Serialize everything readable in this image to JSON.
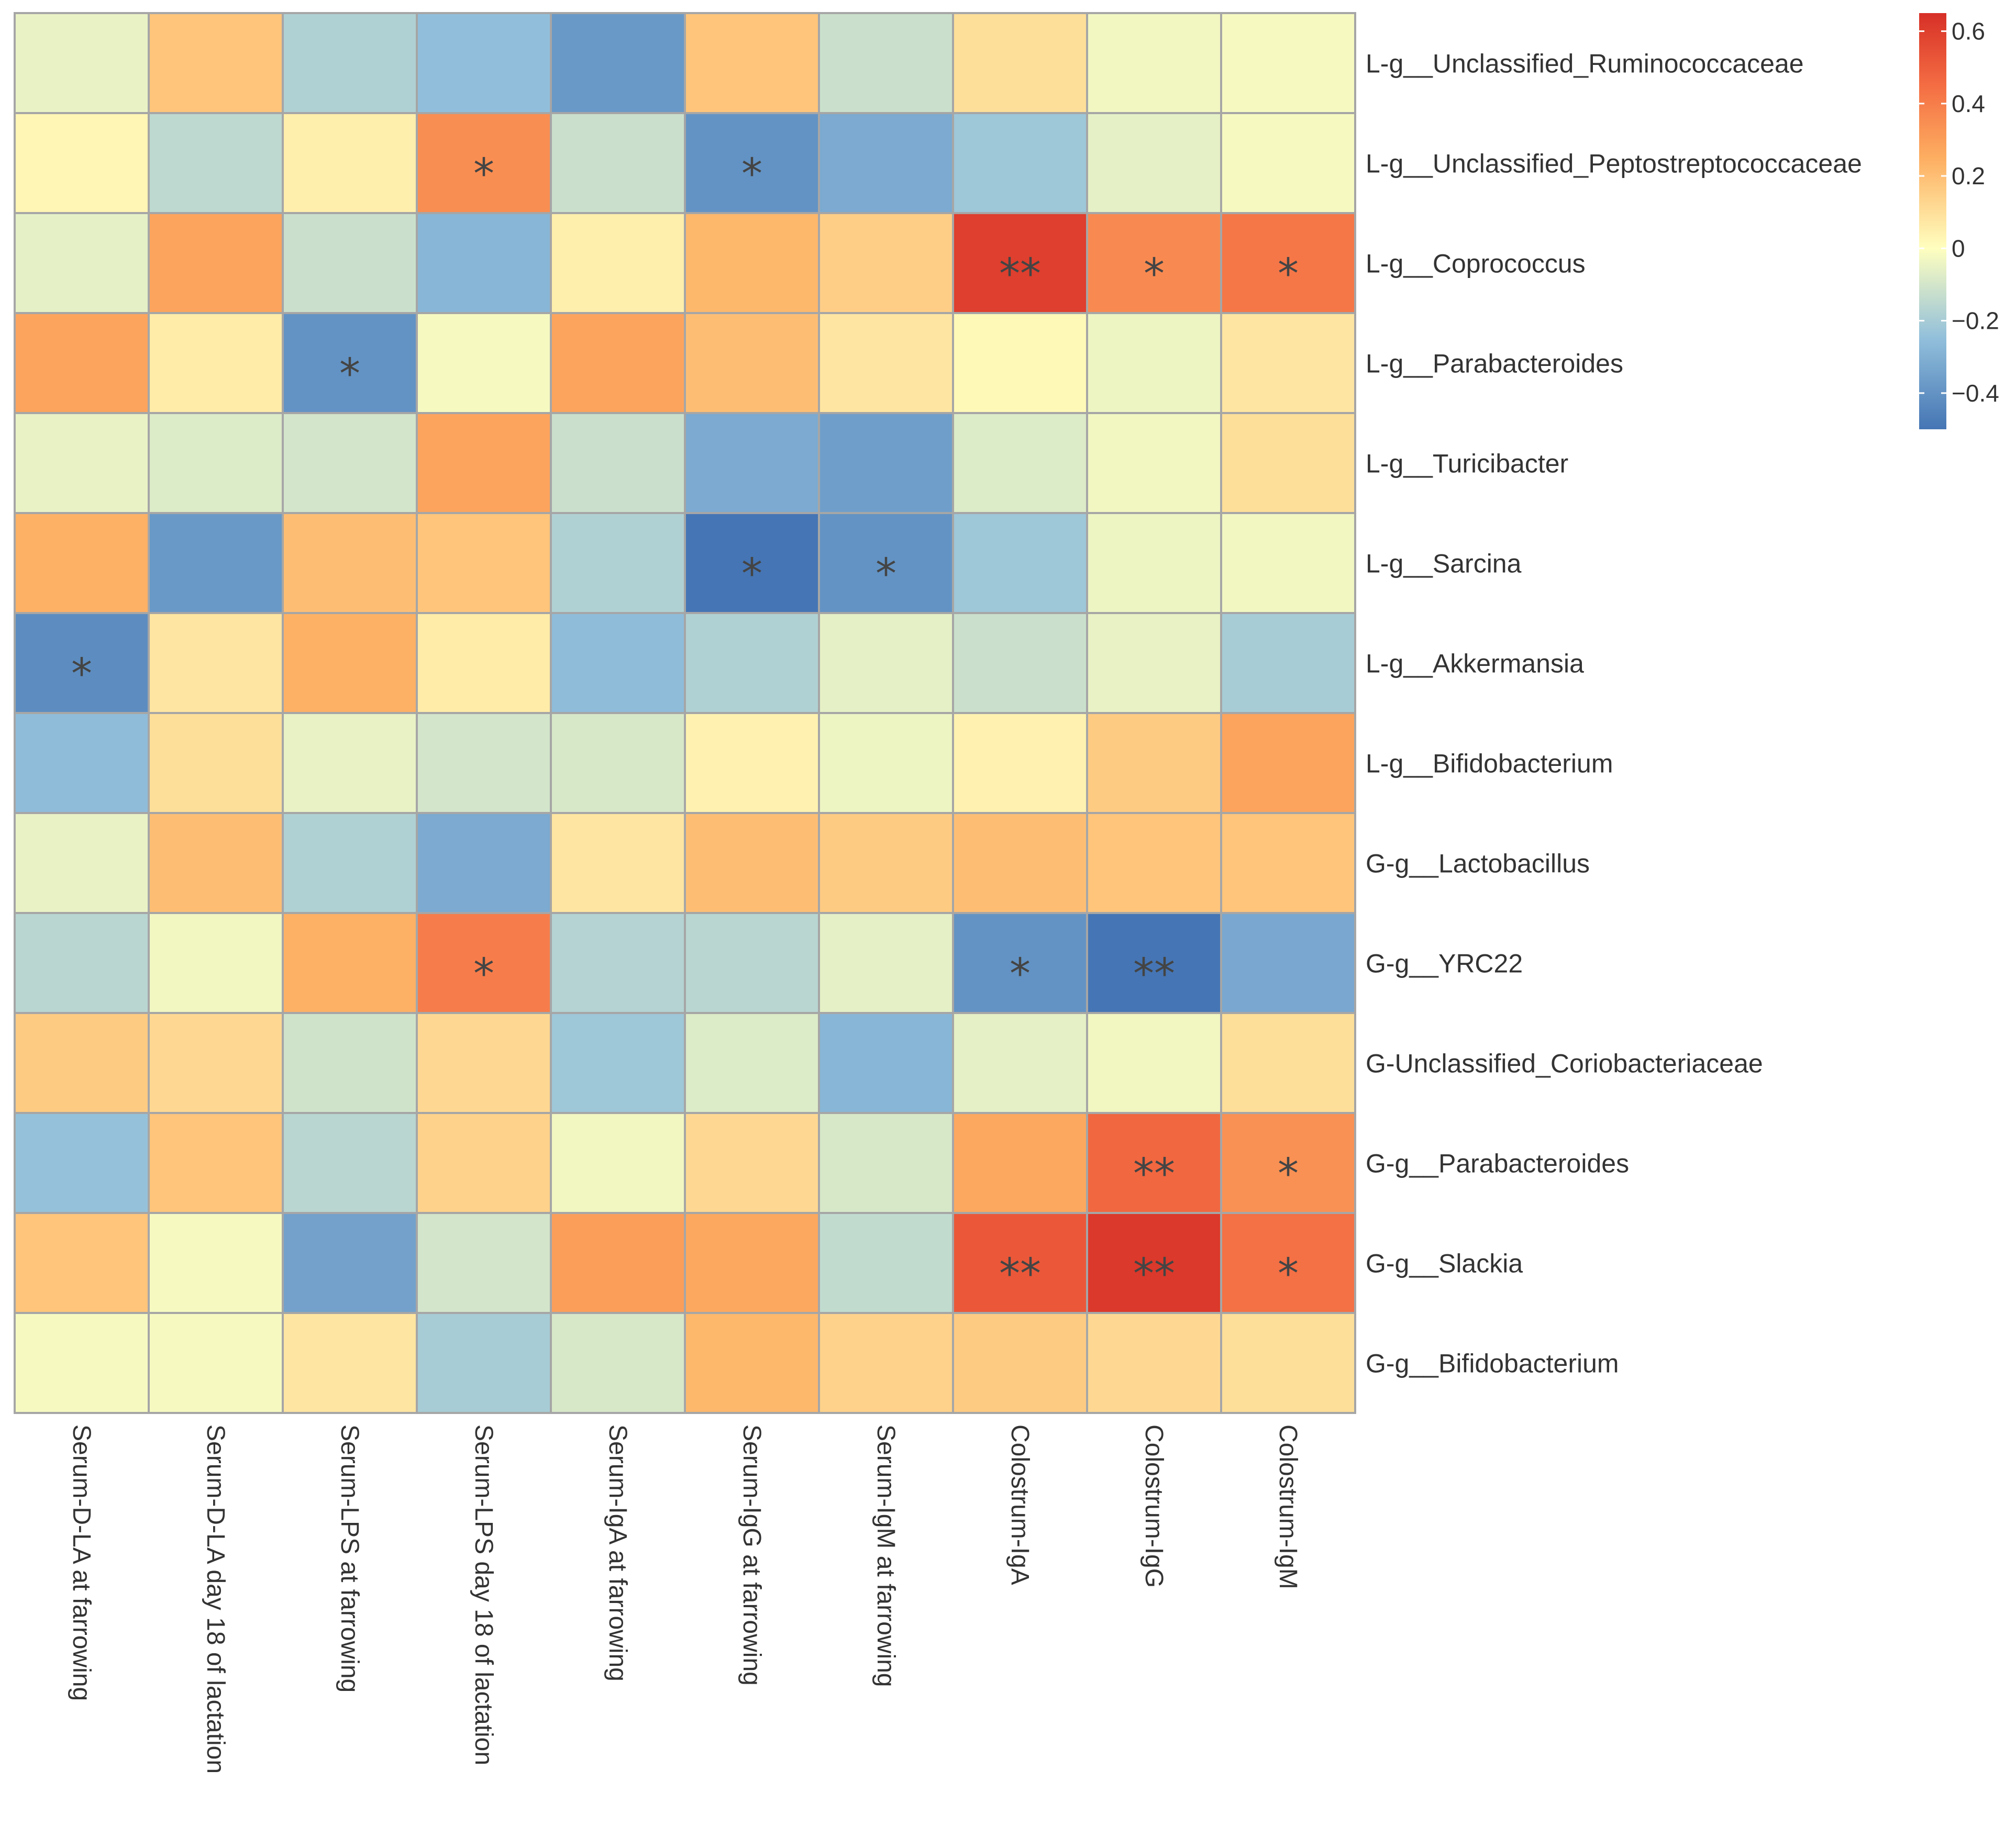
{
  "chart_data": {
    "type": "heatmap",
    "title": "",
    "columns": [
      "Serum-D-LA at farrowing",
      "Serum-D-LA day 18 of lactation",
      "Serum-LPS at farrowing",
      "Serum-LPS day 18 of lactation",
      "Serum-IgA at farrowing",
      "Serum-IgG at farrowing",
      "Serum-IgM at farrowing",
      "Colostrum-IgA",
      "Colostrum-IgG",
      "Colostrum-IgM"
    ],
    "rows": [
      "L-g__Unclassified_Ruminococcaceae",
      "L-g__Unclassified_Peptostreptococcaceae",
      "L-g__Coprococcus",
      "L-g__Parabacteroides",
      "L-g__Turicibacter",
      "L-g__Sarcina",
      "L-g__Akkermansia",
      "L-g__Bifidobacterium",
      "G-g__Lactobacillus",
      "G-g__YRC22",
      "G-Unclassified_Coriobacteriaceae",
      "G-g__Parabacteroides",
      "G-g__Slackia",
      "G-g__Bifidobacterium"
    ],
    "values": [
      [
        -0.05,
        0.18,
        -0.18,
        -0.25,
        -0.38,
        0.18,
        -0.12,
        0.1,
        -0.03,
        -0.02
      ],
      [
        0.03,
        -0.15,
        0.05,
        0.35,
        -0.12,
        -0.4,
        -0.32,
        -0.22,
        -0.06,
        -0.02
      ],
      [
        -0.06,
        0.28,
        -0.12,
        -0.28,
        0.05,
        0.22,
        0.15,
        0.6,
        0.36,
        0.42
      ],
      [
        0.28,
        0.06,
        -0.4,
        -0.02,
        0.28,
        0.2,
        0.08,
        0.02,
        -0.04,
        0.08
      ],
      [
        -0.05,
        -0.08,
        -0.1,
        0.28,
        -0.12,
        -0.32,
        -0.36,
        -0.08,
        -0.03,
        0.1
      ],
      [
        0.24,
        -0.38,
        0.2,
        0.18,
        -0.18,
        -0.5,
        -0.4,
        -0.22,
        -0.04,
        -0.03
      ],
      [
        -0.42,
        0.08,
        0.24,
        0.06,
        -0.26,
        -0.18,
        -0.06,
        -0.12,
        -0.05,
        -0.2
      ],
      [
        -0.26,
        0.1,
        -0.05,
        -0.1,
        -0.09,
        0.04,
        -0.04,
        0.04,
        0.16,
        0.28
      ],
      [
        -0.05,
        0.2,
        -0.18,
        -0.32,
        0.08,
        0.2,
        0.16,
        0.2,
        0.18,
        0.18
      ],
      [
        -0.16,
        -0.03,
        0.24,
        0.4,
        -0.17,
        -0.16,
        -0.06,
        -0.4,
        -0.5,
        -0.33
      ],
      [
        0.16,
        0.12,
        -0.11,
        0.12,
        -0.22,
        -0.08,
        -0.28,
        -0.06,
        -0.03,
        0.1
      ],
      [
        -0.24,
        0.18,
        -0.16,
        0.14,
        -0.03,
        0.12,
        -0.09,
        0.27,
        0.47,
        0.34
      ],
      [
        0.18,
        -0.02,
        -0.35,
        -0.1,
        0.3,
        0.27,
        -0.14,
        0.52,
        0.62,
        0.44
      ],
      [
        -0.02,
        -0.02,
        0.08,
        -0.2,
        -0.09,
        0.22,
        0.14,
        0.16,
        0.12,
        0.1
      ]
    ],
    "significance": [
      [
        "",
        "",
        "",
        "",
        "",
        "",
        "",
        "",
        "",
        ""
      ],
      [
        "",
        "",
        "",
        "*",
        "",
        "*",
        "",
        "",
        "",
        ""
      ],
      [
        "",
        "",
        "",
        "",
        "",
        "",
        "",
        "**",
        "*",
        "*"
      ],
      [
        "",
        "",
        "*",
        "",
        "",
        "",
        "",
        "",
        "",
        ""
      ],
      [
        "",
        "",
        "",
        "",
        "",
        "",
        "",
        "",
        "",
        ""
      ],
      [
        "",
        "",
        "",
        "",
        "",
        "*",
        "*",
        "",
        "",
        ""
      ],
      [
        "*",
        "",
        "",
        "",
        "",
        "",
        "",
        "",
        "",
        ""
      ],
      [
        "",
        "",
        "",
        "",
        "",
        "",
        "",
        "",
        "",
        ""
      ],
      [
        "",
        "",
        "",
        "",
        "",
        "",
        "",
        "",
        "",
        ""
      ],
      [
        "",
        "",
        "",
        "*",
        "",
        "",
        "",
        "*",
        "**",
        ""
      ],
      [
        "",
        "",
        "",
        "",
        "",
        "",
        "",
        "",
        "",
        ""
      ],
      [
        "",
        "",
        "",
        "",
        "",
        "",
        "",
        "",
        "**",
        "*"
      ],
      [
        "",
        "",
        "",
        "",
        "",
        "",
        "",
        "**",
        "**",
        "*"
      ],
      [
        "",
        "",
        "",
        "",
        "",
        "",
        "",
        "",
        "",
        ""
      ]
    ],
    "color_scale": {
      "range": [
        -0.5,
        0.65
      ],
      "ticks": [
        0.6,
        0.4,
        0.2,
        0,
        -0.2,
        -0.4
      ],
      "tick_labels": [
        "0.6",
        "0.4",
        "0.2",
        "0",
        "−0.2",
        "−0.4"
      ],
      "stops": [
        {
          "value": -0.5,
          "color": "#4575b4"
        },
        {
          "value": -0.25,
          "color": "#91bfdb"
        },
        {
          "value": 0.0,
          "color": "#ffffbf"
        },
        {
          "value": 0.25,
          "color": "#fdae61"
        },
        {
          "value": 0.45,
          "color": "#f46d43"
        },
        {
          "value": 0.65,
          "color": "#d73027"
        }
      ]
    },
    "legend_position": "top-right",
    "grid_color": "#a6a6a6"
  }
}
